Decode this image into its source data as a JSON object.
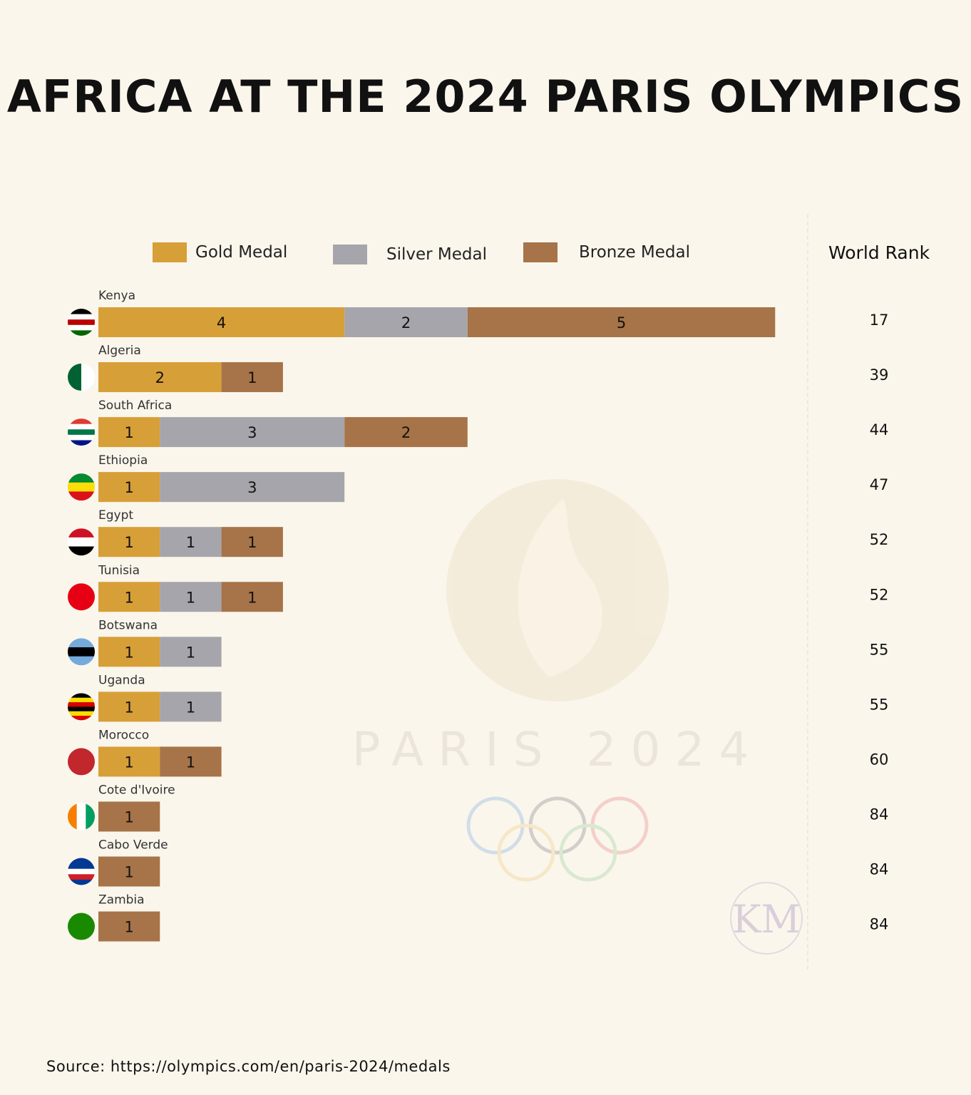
{
  "title": "AFRICA AT THE 2024 PARIS OLYMPICS",
  "source": "Source: https://olympics.com/en/paris-2024/medals",
  "watermark": {
    "logo_text": "PARIS 2024",
    "signature": "KM"
  },
  "colors": {
    "gold": "#d79f38",
    "silver": "#a6a5ab",
    "bronze": "#a67448",
    "background": "#fbf6ec"
  },
  "chart_data": {
    "type": "bar",
    "orientation": "horizontal",
    "stacked": true,
    "legend": {
      "position": "top",
      "entries": [
        "Gold Medal",
        "Silver Medal",
        "Bronze Medal"
      ]
    },
    "rank_header": "World Rank",
    "categories": [
      "Kenya",
      "Algeria",
      "South Africa",
      "Ethiopia",
      "Egypt",
      "Tunisia",
      "Botswana",
      "Uganda",
      "Morocco",
      "Cote d'Ivoire",
      "Cabo Verde",
      "Zambia"
    ],
    "series": [
      {
        "name": "Gold Medal",
        "values": [
          4,
          2,
          1,
          1,
          1,
          1,
          1,
          1,
          1,
          0,
          0,
          0
        ]
      },
      {
        "name": "Silver Medal",
        "values": [
          2,
          0,
          3,
          3,
          1,
          1,
          1,
          1,
          0,
          0,
          0,
          0
        ]
      },
      {
        "name": "Bronze Medal",
        "values": [
          5,
          1,
          2,
          0,
          1,
          1,
          0,
          0,
          1,
          1,
          1,
          1
        ]
      }
    ],
    "world_rank": [
      17,
      39,
      44,
      47,
      52,
      52,
      55,
      55,
      60,
      84,
      84,
      84
    ],
    "flags": [
      {
        "name": "kenya-flag",
        "stripes": [
          "#000000",
          "#ffffff",
          "#bb0000",
          "#ffffff",
          "#006600"
        ],
        "dir": "h"
      },
      {
        "name": "algeria-flag",
        "stripes": [
          "#006233",
          "#ffffff"
        ],
        "dir": "v"
      },
      {
        "name": "south-africa-flag",
        "stripes": [
          "#e03c31",
          "#ffffff",
          "#007749",
          "#ffffff",
          "#001489"
        ],
        "dir": "h"
      },
      {
        "name": "ethiopia-flag",
        "stripes": [
          "#078930",
          "#fcdd09",
          "#da121a"
        ],
        "dir": "h"
      },
      {
        "name": "egypt-flag",
        "stripes": [
          "#ce1126",
          "#ffffff",
          "#000000"
        ],
        "dir": "h"
      },
      {
        "name": "tunisia-flag",
        "stripes": [
          "#e70013"
        ],
        "dir": "h"
      },
      {
        "name": "botswana-flag",
        "stripes": [
          "#75aadb",
          "#000000",
          "#75aadb"
        ],
        "dir": "h"
      },
      {
        "name": "uganda-flag",
        "stripes": [
          "#000000",
          "#fcdc04",
          "#d90000",
          "#000000",
          "#fcdc04",
          "#d90000"
        ],
        "dir": "h"
      },
      {
        "name": "morocco-flag",
        "stripes": [
          "#c1272d"
        ],
        "dir": "h"
      },
      {
        "name": "cote-divoire-flag",
        "stripes": [
          "#f77f00",
          "#ffffff",
          "#009e60"
        ],
        "dir": "v"
      },
      {
        "name": "cabo-verde-flag",
        "stripes": [
          "#003893",
          "#003893",
          "#ffffff",
          "#cf2027",
          "#003893"
        ],
        "dir": "h"
      },
      {
        "name": "zambia-flag",
        "stripes": [
          "#198a00"
        ],
        "dir": "h"
      }
    ]
  }
}
